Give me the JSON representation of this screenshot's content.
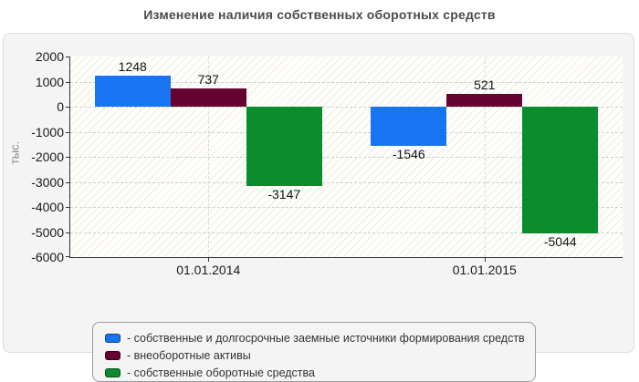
{
  "chart_data": {
    "type": "bar",
    "title": "Изменение наличия собственных оборотных средств",
    "ylabel": "тыс.",
    "categories": [
      "01.01.2014",
      "01.01.2015"
    ],
    "series": [
      {
        "label": "- собственные и долгосрочные заемные источники формирования средств",
        "color": "#1874f0",
        "values": [
          1248,
          -1546
        ]
      },
      {
        "label": "- внеоборотные активы",
        "color": "#650430",
        "values": [
          737,
          521
        ]
      },
      {
        "label": "- собственные оборотные средства",
        "color": "#0b8c2d",
        "values": [
          -3147,
          -5044
        ]
      }
    ],
    "ylim": [
      -6000,
      2000
    ],
    "ytick_step": 1000,
    "grid": true,
    "legend_position": "bottom"
  },
  "colors": {
    "panel_background": "#f4f4f4",
    "panel_border": "#dcdcdc",
    "plot_background": "#fffef8",
    "axis_line": "#333333",
    "gridline": "#cfcfcf",
    "title_text": "#4b4b4b",
    "tick_text": "#1a1a1a",
    "y_unit_text": "#8a8a8a",
    "legend_border": "#9b9b9b"
  }
}
